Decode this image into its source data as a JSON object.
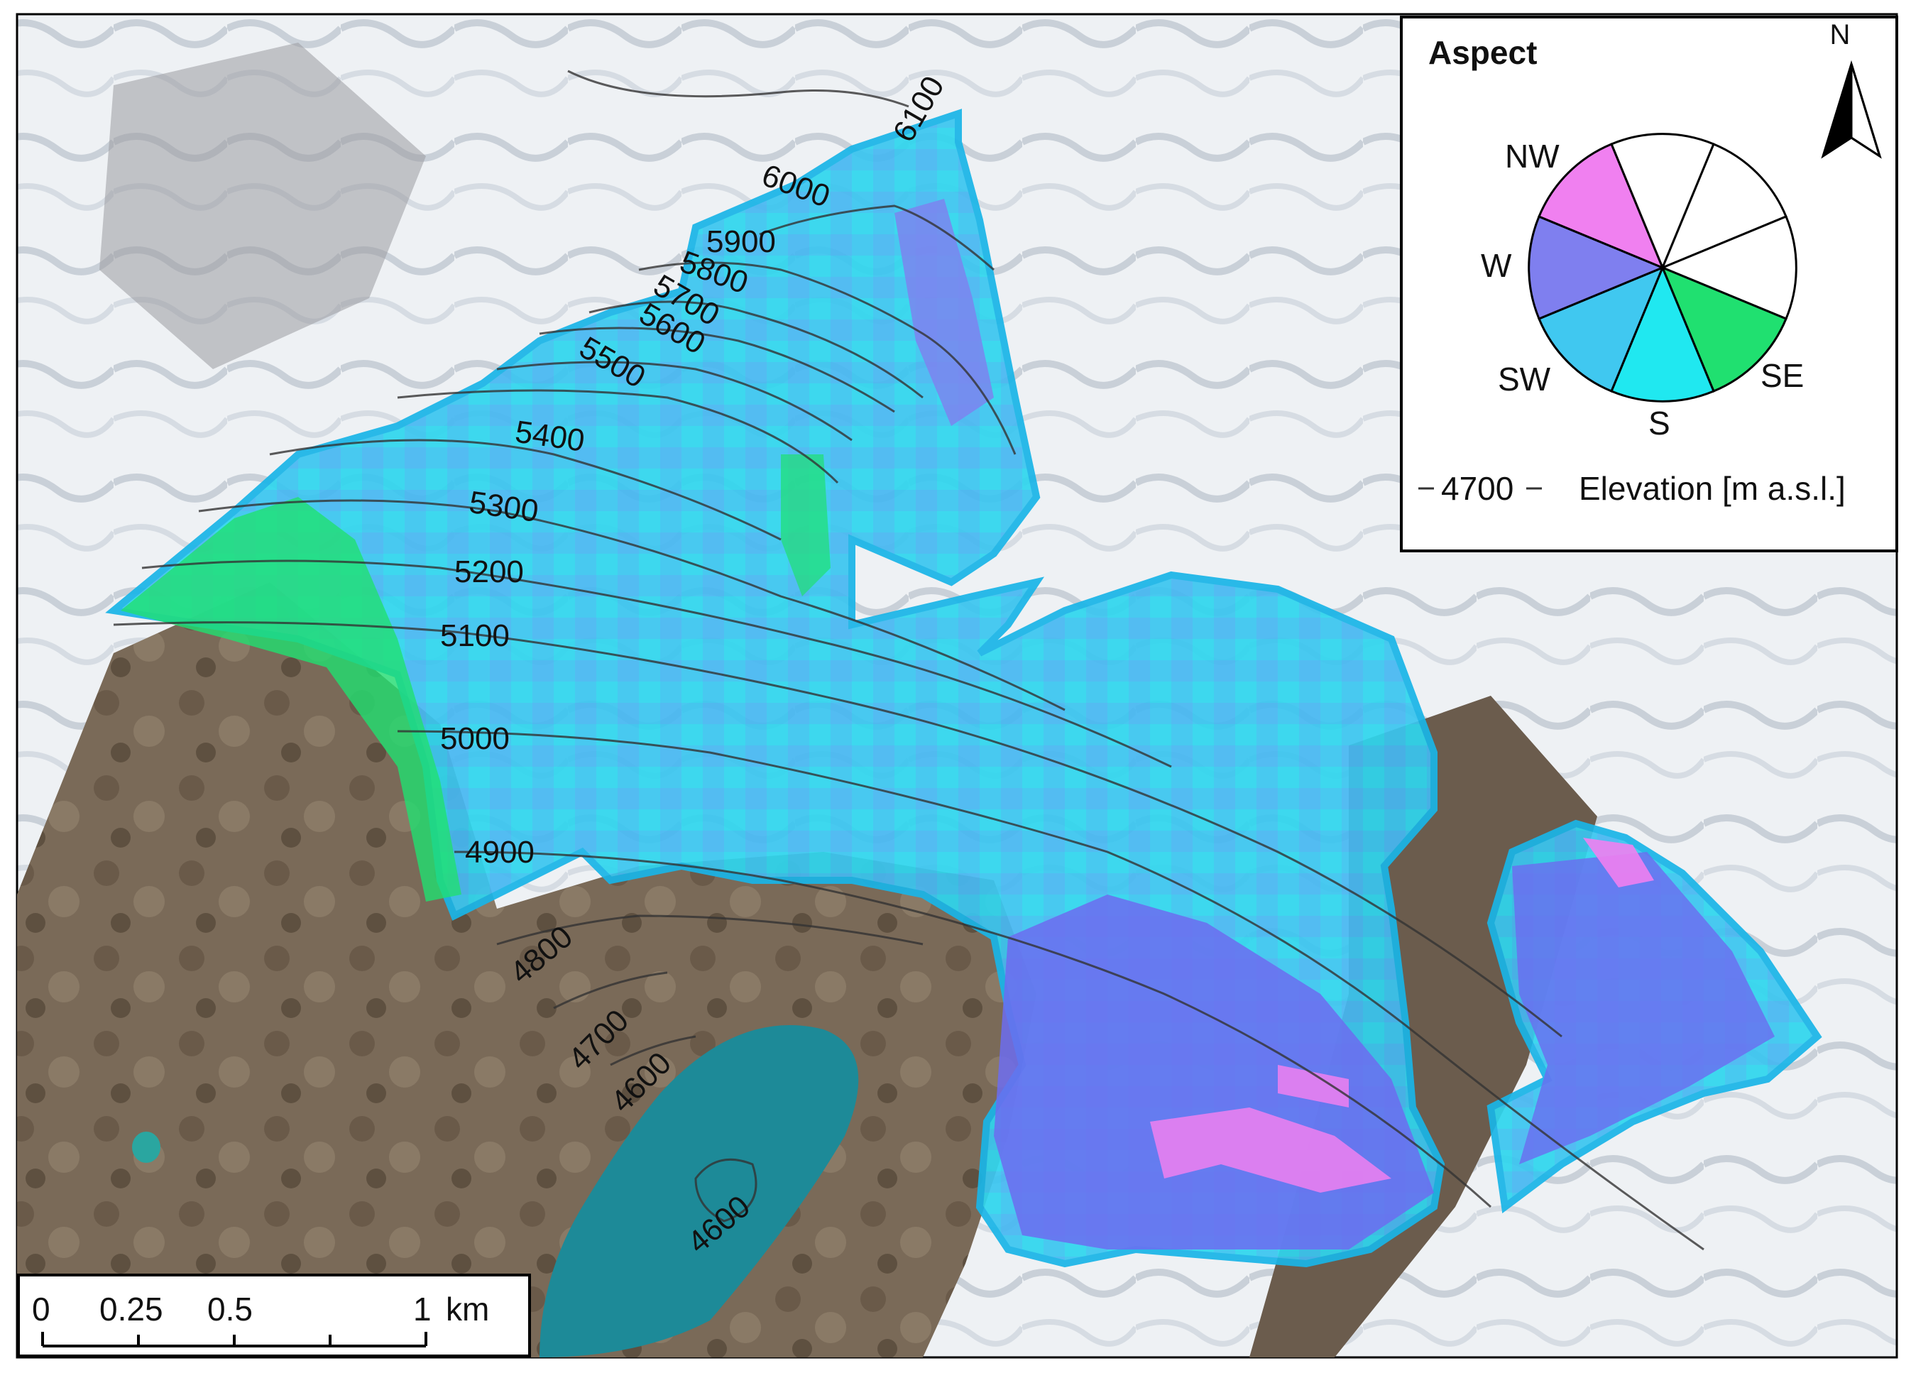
{
  "legend": {
    "title": "Aspect",
    "directions": [
      "NW",
      "W",
      "SW",
      "S",
      "SE"
    ],
    "contour_sample": "4700",
    "contour_caption": "Elevation [m a.s.l.]"
  },
  "north_arrow": {
    "label": "N"
  },
  "scale_bar": {
    "labels": [
      "0",
      "0.25",
      "0.5",
      "1"
    ],
    "unit": "km"
  },
  "contours": [
    "6100",
    "6000",
    "5900",
    "5800",
    "5700",
    "5600",
    "5500",
    "5400",
    "5300",
    "5200",
    "5100",
    "5000",
    "4900",
    "4800",
    "4700",
    "4600",
    "4600"
  ],
  "colors": {
    "NW": "#f080f0",
    "W": "#7f7fef",
    "SW": "#40c8f0",
    "S": "#20e8f0",
    "SE": "#20e070",
    "glacier_fill": "#2ad0f0",
    "glacier_outline": "#19b5e8",
    "lake": "#1d8a98",
    "rock": "#7a6a58",
    "snow": "#eef1f4"
  }
}
